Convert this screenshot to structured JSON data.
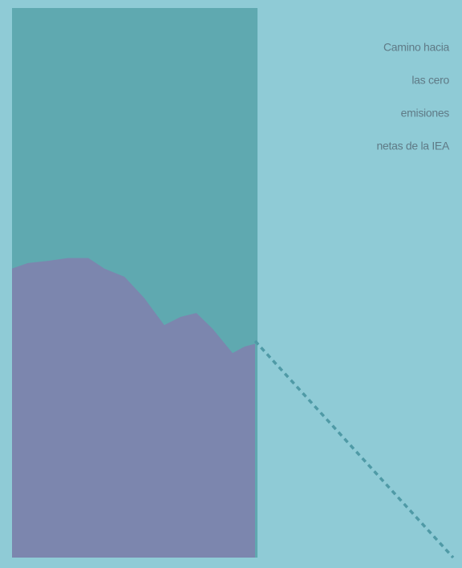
{
  "chart_data": {
    "type": "area",
    "annotation": [
      "Camino hacia",
      "las cero",
      "emisiones",
      "netas de la IEA"
    ],
    "xlim": [
      0,
      100
    ],
    "ylim": [
      0,
      100
    ],
    "series": [
      {
        "color": "#7c86ae",
        "style": "solid",
        "x": [
          0,
          3.6,
          8.2,
          12.7,
          17.3,
          20.9,
          25.5,
          30,
          34.5,
          38.2,
          41.8,
          45.5,
          50,
          52.7,
          55.1
        ],
        "values": [
          52.6,
          53.6,
          54,
          54.5,
          54.5,
          52.6,
          51.1,
          47.2,
          42.3,
          43.8,
          44.5,
          41.6,
          37.2,
          38.4,
          38.9
        ]
      },
      {
        "color": "#4f9aa6",
        "style": "dashed",
        "x": [
          55.1,
          100
        ],
        "values": [
          39.4,
          0
        ]
      }
    ]
  }
}
